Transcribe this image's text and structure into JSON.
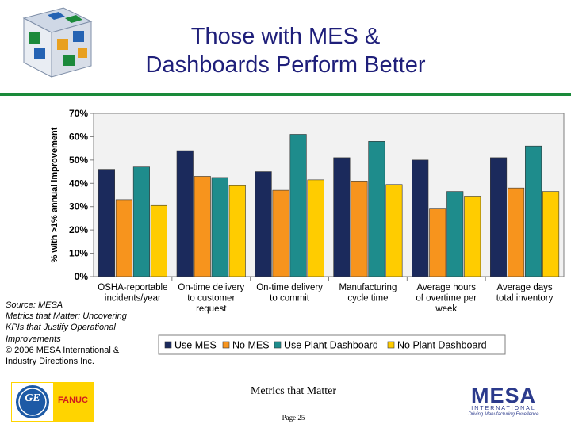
{
  "slide": {
    "title_line1": "Those with MES &",
    "title_line2": "Dashboards Perform Better",
    "footer_title": "Metrics that Matter",
    "page_label": "Page 25"
  },
  "source": {
    "line1": "Source: MESA",
    "line2": "Metrics that Matter: Uncovering",
    "line3": "KPIs that Justify Operational",
    "line4": "Improvements",
    "line5": "© 2006 MESA International &",
    "line6": "Industry Directions Inc."
  },
  "logos": {
    "ge_letters": "GE",
    "fanuc": "FANUC",
    "mesa": "MESA",
    "mesa_sub": "INTERNATIONAL",
    "mesa_tag": "Driving Manufacturing Excellence"
  },
  "colors": {
    "accent_rule": "#1a8a3a",
    "title": "#1f1f7a",
    "plot_bg": "#f2f2f2"
  },
  "chart_data": {
    "type": "bar",
    "title": "",
    "xlabel": "",
    "ylabel": "% with >1% annual improvement",
    "ylim": [
      0,
      70
    ],
    "yticks": [
      0,
      10,
      20,
      30,
      40,
      50,
      60,
      70
    ],
    "ytick_labels": [
      "0%",
      "10%",
      "20%",
      "30%",
      "40%",
      "50%",
      "60%",
      "70%"
    ],
    "grid": false,
    "legend_position": "bottom",
    "categories": [
      [
        "OSHA-reportable",
        "incidents/year"
      ],
      [
        "On-time delivery",
        "to customer",
        "request"
      ],
      [
        "On-time delivery",
        "to commit"
      ],
      [
        "Manufacturing",
        "cycle time"
      ],
      [
        "Average hours",
        "of overtime per",
        "week"
      ],
      [
        "Average days",
        "total inventory"
      ]
    ],
    "series": [
      {
        "name": "Use MES",
        "color": "#1b2a5c",
        "values": [
          46,
          54,
          45,
          51,
          50,
          51
        ]
      },
      {
        "name": "No MES",
        "color": "#f7941d",
        "values": [
          33,
          43,
          37,
          41,
          29,
          38
        ]
      },
      {
        "name": "Use Plant Dashboard",
        "color": "#1e8c8c",
        "values": [
          47,
          42.5,
          61,
          58,
          36.5,
          56
        ]
      },
      {
        "name": "No Plant Dashboard",
        "color": "#ffcc00",
        "values": [
          30.5,
          39,
          41.5,
          39.5,
          34.5,
          36.5
        ]
      }
    ]
  }
}
